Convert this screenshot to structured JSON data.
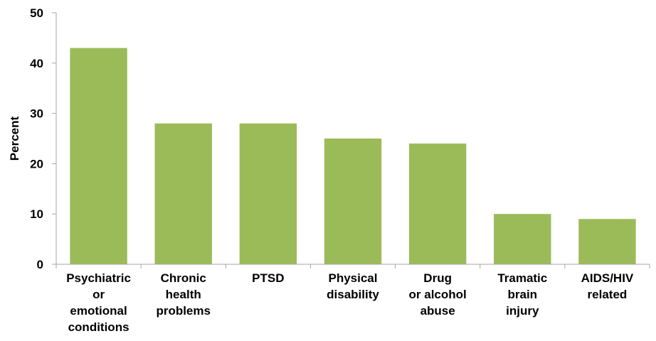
{
  "chart_data": {
    "type": "bar",
    "title": "",
    "xlabel": "",
    "ylabel": "Percent",
    "ylim": [
      0,
      50
    ],
    "yticks": [
      0,
      10,
      20,
      30,
      40,
      50
    ],
    "grid": false,
    "legend": "none",
    "categories": [
      [
        "Psychiatric",
        "or",
        "emotional",
        "conditions"
      ],
      [
        "Chronic",
        "health",
        "problems"
      ],
      [
        "PTSD"
      ],
      [
        "Physical",
        "disability"
      ],
      [
        "Drug",
        "or alcohol",
        "abuse"
      ],
      [
        "Tramatic",
        "brain",
        "injury"
      ],
      [
        "AIDS/HIV",
        "related"
      ]
    ],
    "values": [
      43,
      28,
      28,
      25,
      24,
      10,
      9
    ],
    "colors": {
      "bar": "#9bbb59",
      "axis": "#a6a6a6"
    }
  }
}
